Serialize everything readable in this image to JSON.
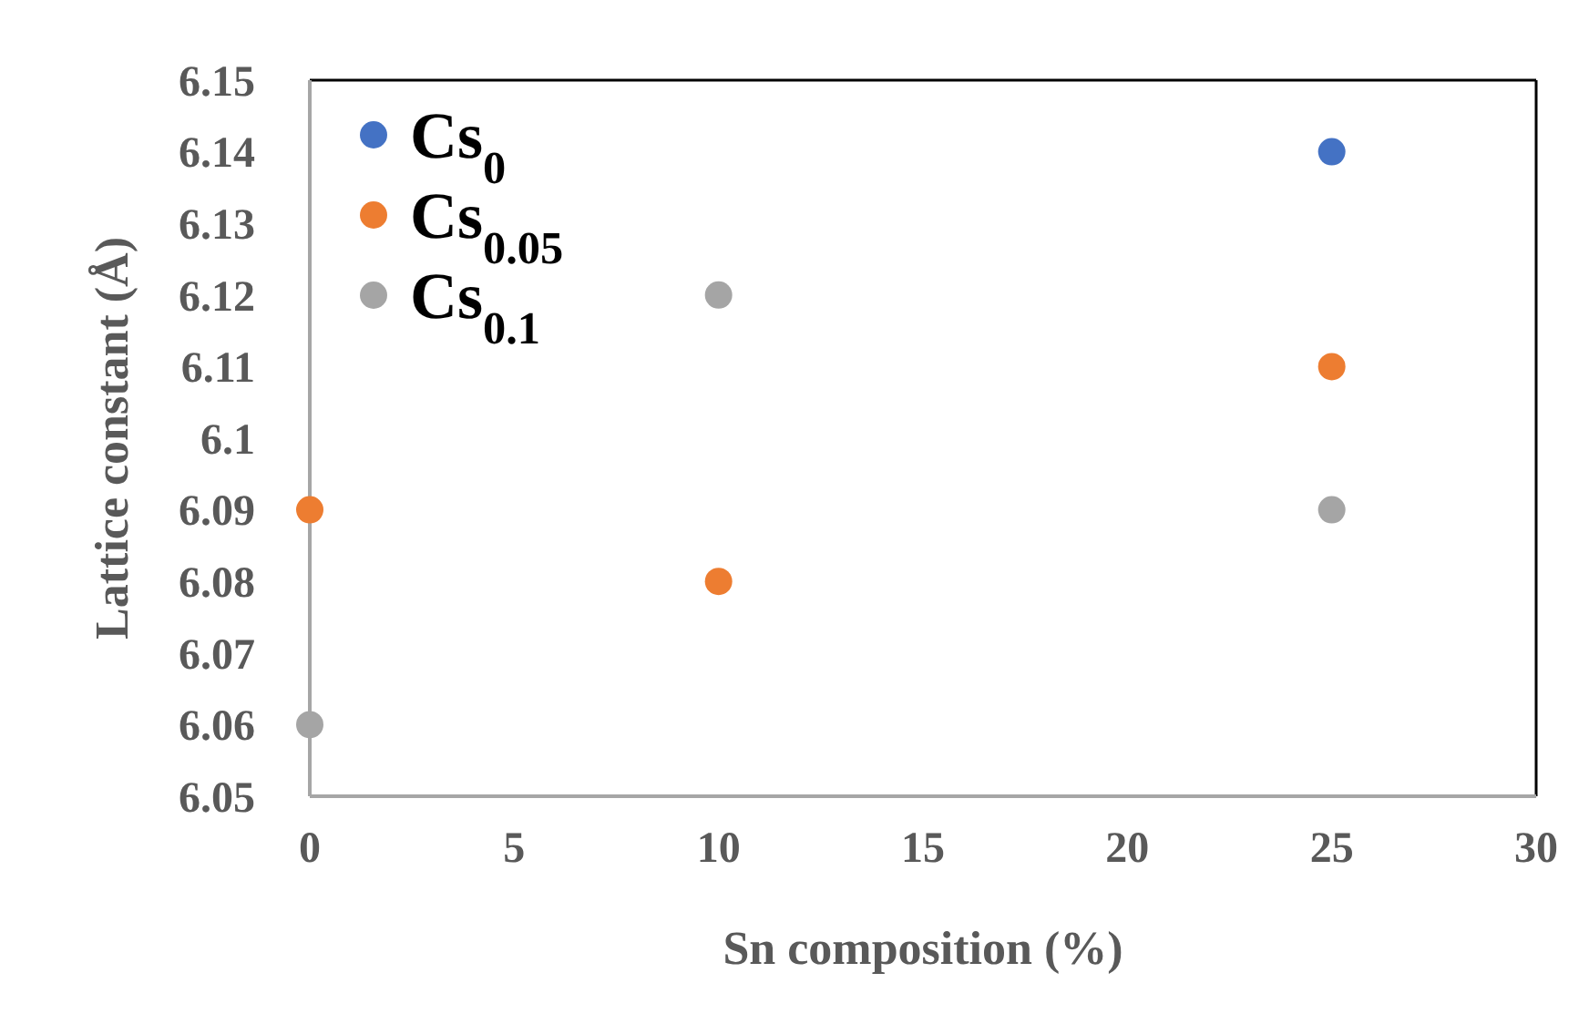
{
  "chart_data": {
    "type": "scatter",
    "xlabel": "Sn composition (%)",
    "ylabel": "Lattice constant (Å)",
    "x": [
      0,
      10,
      25
    ],
    "series": [
      {
        "name": "Cs$_{0}$",
        "color": "#4472c4",
        "values": [
          null,
          null,
          6.14
        ]
      },
      {
        "name": "Cs$_{0.05}$",
        "color": "#ed7d31",
        "values": [
          6.09,
          6.08,
          6.11
        ]
      },
      {
        "name": "Cs$_{0.1}$",
        "color": "#a5a5a5",
        "values": [
          6.06,
          6.12,
          6.09
        ]
      }
    ],
    "xlim": [
      0,
      30
    ],
    "xticks": [
      0,
      5,
      10,
      15,
      20,
      25,
      30
    ],
    "ylim": [
      6.05,
      6.15
    ],
    "yticks": [
      6.05,
      6.06,
      6.07,
      6.08,
      6.09,
      {
        "value": 6.1,
        "label": "6.1"
      },
      6.11,
      6.12,
      6.13,
      6.14,
      6.15
    ],
    "grid": false,
    "legend": "top left",
    "marker": "circle"
  }
}
